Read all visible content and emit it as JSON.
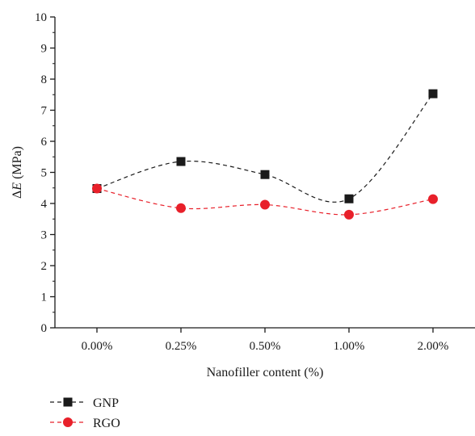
{
  "chart_data": {
    "type": "scatter",
    "xlabel": "Nanofiller content (%)",
    "ylabel_prefix": "Δ",
    "ylabel_var": "E",
    "ylabel_unit": " (MPa)",
    "categories": [
      "0.00%",
      "0.25%",
      "0.50%",
      "1.00%",
      "2.00%"
    ],
    "ylim": [
      0,
      10
    ],
    "yticks": [
      "0",
      "1",
      "2",
      "3",
      "4",
      "5",
      "6",
      "7",
      "8",
      "9",
      "10"
    ],
    "grid": false,
    "legend_position": "bottom-left",
    "fit_lines": "dashed smooth spline",
    "series": [
      {
        "name": "GNP",
        "marker": "square",
        "color": "#1a1a1a",
        "values": [
          4.48,
          5.35,
          4.93,
          4.15,
          7.53
        ]
      },
      {
        "name": "RGO",
        "marker": "circle",
        "color": "#e8202a",
        "values": [
          4.48,
          3.85,
          3.96,
          3.64,
          4.14
        ]
      }
    ]
  }
}
